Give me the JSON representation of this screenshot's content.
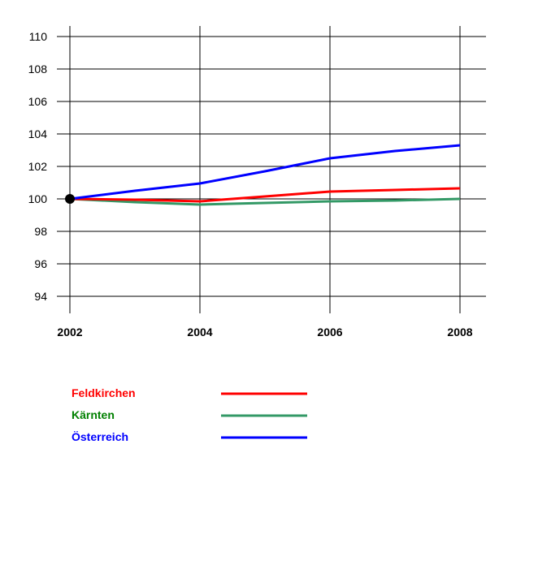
{
  "chart_data": {
    "type": "line",
    "title": "",
    "xlabel": "",
    "ylabel": "",
    "x": [
      2002,
      2003,
      2004,
      2005,
      2006,
      2007,
      2008
    ],
    "x_ticks": [
      "2002",
      "2004",
      "2006",
      "2008"
    ],
    "y_ticks": [
      "94",
      "96",
      "98",
      "100",
      "102",
      "104",
      "106",
      "108",
      "110"
    ],
    "ylim": [
      94,
      110
    ],
    "xlim": [
      2002,
      2008
    ],
    "grid": true,
    "legend_position": "bottom-left",
    "series": [
      {
        "name": "Feldkirchen",
        "color": "#ff0000",
        "values": [
          100,
          99.95,
          99.85,
          100.15,
          100.45,
          100.55,
          100.65
        ]
      },
      {
        "name": "Kärnten",
        "color": "#339966",
        "label_color": "#008000",
        "values": [
          100,
          99.8,
          99.65,
          99.75,
          99.85,
          99.9,
          100.0
        ]
      },
      {
        "name": "Österreich",
        "color": "#0000ff",
        "values": [
          100,
          100.5,
          100.95,
          101.7,
          102.5,
          102.95,
          103.3
        ]
      }
    ],
    "base_point": {
      "x": 2002,
      "y": 100
    }
  }
}
